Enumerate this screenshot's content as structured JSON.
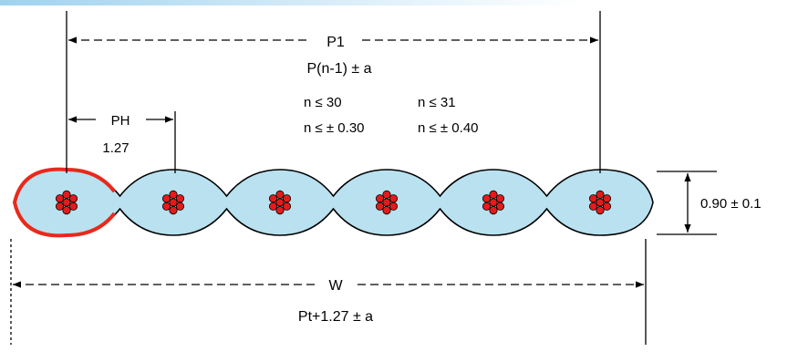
{
  "labels": {
    "pitch_total": "P1",
    "pitch_formula": "P(n-1) ± a",
    "cond_left_1": "n ≤ 30",
    "cond_left_2": "n ≤ ± 0.30",
    "cond_right_1": "n ≤ 31",
    "cond_right_2": "n ≤ ± 0.40",
    "pitch_label": "PH",
    "pitch_value": "1.27",
    "thickness": "0.90 ± 0.1",
    "width_label": "W",
    "width_formula": "Pt+1.27 ± a"
  },
  "conductor_count": 6,
  "colors": {
    "insulation_fill": "#b9e1ef",
    "outline": "#000000",
    "highlight_outline": "#e8291c",
    "strand_fill": "#e01c1c",
    "top_band": "#bfe3f5"
  }
}
